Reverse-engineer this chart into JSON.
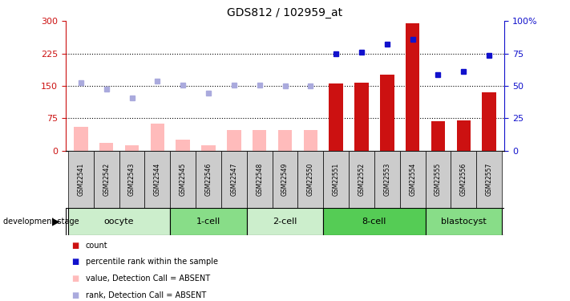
{
  "title": "GDS812 / 102959_at",
  "samples": [
    "GSM22541",
    "GSM22542",
    "GSM22543",
    "GSM22544",
    "GSM22545",
    "GSM22546",
    "GSM22547",
    "GSM22548",
    "GSM22549",
    "GSM22550",
    "GSM22551",
    "GSM22552",
    "GSM22553",
    "GSM22554",
    "GSM22555",
    "GSM22556",
    "GSM22557"
  ],
  "count_values": [
    55,
    18,
    12,
    62,
    25,
    13,
    47,
    47,
    48,
    47,
    155,
    157,
    175,
    295,
    68,
    70,
    135
  ],
  "count_absent": [
    true,
    true,
    true,
    true,
    true,
    true,
    true,
    true,
    true,
    true,
    false,
    false,
    false,
    false,
    false,
    false,
    false
  ],
  "scatter_rank_values": [
    157,
    143,
    122,
    160,
    151,
    133,
    151,
    151,
    149,
    149,
    225,
    228,
    247,
    257,
    176,
    183,
    221
  ],
  "scatter_rank_absent": [
    true,
    true,
    true,
    true,
    true,
    true,
    true,
    true,
    true,
    true,
    false,
    false,
    false,
    false,
    false,
    false,
    false
  ],
  "stages": [
    {
      "label": "oocyte",
      "start": 0,
      "end": 3,
      "color": "#cceecc"
    },
    {
      "label": "1-cell",
      "start": 4,
      "end": 6,
      "color": "#88dd88"
    },
    {
      "label": "2-cell",
      "start": 7,
      "end": 9,
      "color": "#cceecc"
    },
    {
      "label": "8-cell",
      "start": 10,
      "end": 13,
      "color": "#55cc55"
    },
    {
      "label": "blastocyst",
      "start": 14,
      "end": 16,
      "color": "#88dd88"
    }
  ],
  "ylim_left": [
    0,
    300
  ],
  "ylim_right": [
    0,
    100
  ],
  "yticks_left": [
    0,
    75,
    150,
    225,
    300
  ],
  "yticks_right": [
    0,
    25,
    50,
    75,
    100
  ],
  "grid_lines": [
    75,
    150,
    225
  ],
  "bar_color_present": "#cc1111",
  "bar_color_absent": "#ffbbbb",
  "scatter_present_color": "#1111cc",
  "scatter_absent_color": "#aaaadd",
  "left_axis_color": "#cc1111",
  "right_axis_color": "#1111cc",
  "legend_items": [
    {
      "color": "#cc1111",
      "label": "count"
    },
    {
      "color": "#1111cc",
      "label": "percentile rank within the sample"
    },
    {
      "color": "#ffbbbb",
      "label": "value, Detection Call = ABSENT"
    },
    {
      "color": "#aaaadd",
      "label": "rank, Detection Call = ABSENT"
    }
  ]
}
